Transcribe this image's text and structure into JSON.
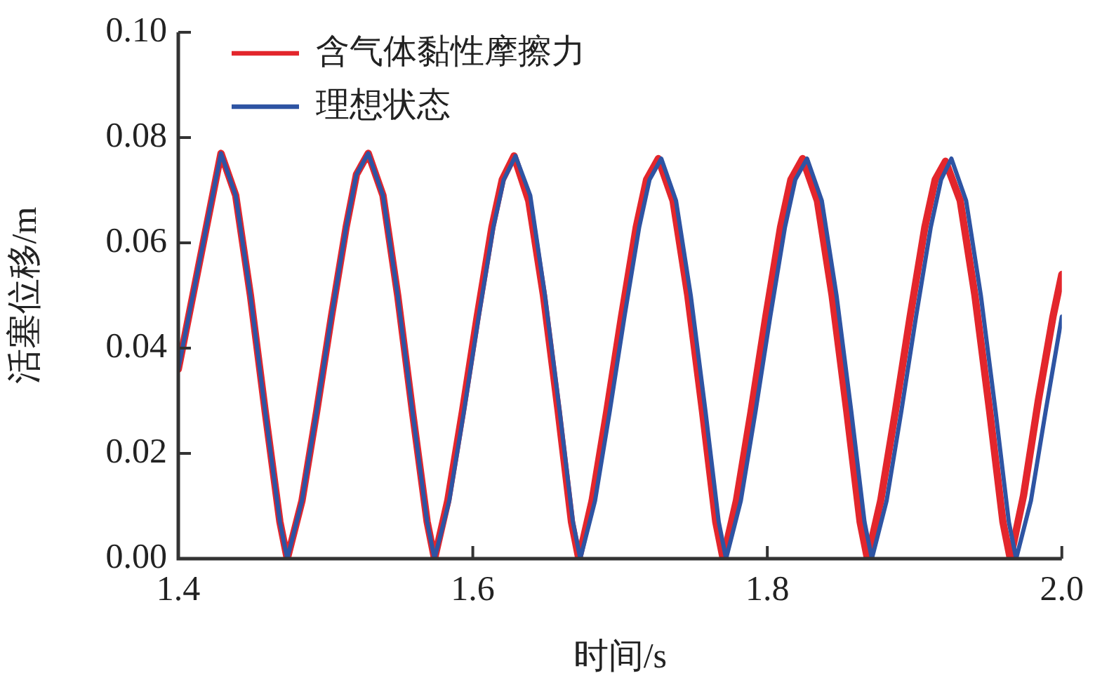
{
  "chart_data": {
    "type": "line",
    "xlabel": "时间/s",
    "ylabel": "活塞位移/m",
    "legend": "top left",
    "xlim": [
      1.4,
      2.0
    ],
    "ylim": [
      0,
      0.1
    ],
    "xticks": [
      {
        "value": 1.4,
        "label": "1.4"
      },
      {
        "value": 1.6,
        "label": "1.6"
      },
      {
        "value": 1.8,
        "label": "1.8"
      },
      {
        "value": 2.0,
        "label": "2.0"
      }
    ],
    "yticks": [
      {
        "value": 0,
        "label": "0.00"
      },
      {
        "value": 0.02,
        "label": "0.02"
      },
      {
        "value": 0.04,
        "label": "0.04"
      },
      {
        "value": 0.06,
        "label": "0.06"
      },
      {
        "value": 0.08,
        "label": "0.08"
      },
      {
        "value": 0.1,
        "label": "0.10"
      }
    ],
    "series": [
      {
        "name": "含气体黏性摩擦力",
        "color": "#e3262c",
        "x": [
          1.4,
          1.429,
          1.439,
          1.449,
          1.459,
          1.469,
          1.474,
          1.484,
          1.494,
          1.504,
          1.514,
          1.521,
          1.529,
          1.539,
          1.549,
          1.559,
          1.569,
          1.574,
          1.583,
          1.593,
          1.603,
          1.613,
          1.62,
          1.628,
          1.638,
          1.648,
          1.658,
          1.667,
          1.672,
          1.681,
          1.691,
          1.701,
          1.711,
          1.718,
          1.726,
          1.736,
          1.746,
          1.756,
          1.765,
          1.77,
          1.779,
          1.789,
          1.799,
          1.809,
          1.816,
          1.824,
          1.834,
          1.844,
          1.854,
          1.863,
          1.868,
          1.877,
          1.887,
          1.897,
          1.907,
          1.914,
          1.921,
          1.931,
          1.941,
          1.951,
          1.96,
          1.965,
          1.974,
          1.984,
          1.994,
          2.0
        ],
        "values": [
          0.036,
          0.077,
          0.069,
          0.05,
          0.028,
          0.007,
          0,
          0.011,
          0.028,
          0.046,
          0.063,
          0.073,
          0.077,
          0.069,
          0.05,
          0.028,
          0.007,
          0,
          0.011,
          0.028,
          0.046,
          0.063,
          0.072,
          0.0765,
          0.068,
          0.05,
          0.028,
          0.007,
          0,
          0.011,
          0.028,
          0.046,
          0.063,
          0.072,
          0.076,
          0.068,
          0.05,
          0.028,
          0.007,
          0,
          0.011,
          0.028,
          0.046,
          0.063,
          0.072,
          0.076,
          0.068,
          0.05,
          0.028,
          0.007,
          0,
          0.011,
          0.028,
          0.046,
          0.063,
          0.072,
          0.0755,
          0.068,
          0.05,
          0.028,
          0.007,
          0,
          0.012,
          0.03,
          0.046,
          0.054
        ]
      },
      {
        "name": "理想状态",
        "color": "#2e54a3",
        "x": [
          1.4,
          1.429,
          1.439,
          1.449,
          1.459,
          1.469,
          1.474,
          1.484,
          1.494,
          1.504,
          1.514,
          1.521,
          1.529,
          1.539,
          1.549,
          1.559,
          1.569,
          1.574,
          1.584,
          1.594,
          1.604,
          1.614,
          1.621,
          1.629,
          1.639,
          1.649,
          1.659,
          1.668,
          1.673,
          1.683,
          1.693,
          1.703,
          1.713,
          1.72,
          1.728,
          1.738,
          1.748,
          1.758,
          1.767,
          1.772,
          1.782,
          1.792,
          1.802,
          1.812,
          1.819,
          1.827,
          1.837,
          1.847,
          1.857,
          1.866,
          1.871,
          1.881,
          1.891,
          1.901,
          1.911,
          1.918,
          1.925,
          1.935,
          1.945,
          1.955,
          1.964,
          1.969,
          1.979,
          1.989,
          2.0
        ],
        "values": [
          0.036,
          0.077,
          0.069,
          0.05,
          0.028,
          0.007,
          0,
          0.011,
          0.028,
          0.046,
          0.063,
          0.073,
          0.077,
          0.069,
          0.05,
          0.028,
          0.007,
          0,
          0.011,
          0.028,
          0.046,
          0.063,
          0.072,
          0.0765,
          0.069,
          0.05,
          0.028,
          0.007,
          0,
          0.011,
          0.028,
          0.046,
          0.063,
          0.072,
          0.076,
          0.068,
          0.05,
          0.028,
          0.007,
          0,
          0.011,
          0.028,
          0.046,
          0.063,
          0.072,
          0.076,
          0.068,
          0.05,
          0.028,
          0.007,
          0,
          0.011,
          0.028,
          0.046,
          0.063,
          0.072,
          0.076,
          0.068,
          0.05,
          0.028,
          0.007,
          0,
          0.011,
          0.028,
          0.046
        ]
      }
    ]
  }
}
